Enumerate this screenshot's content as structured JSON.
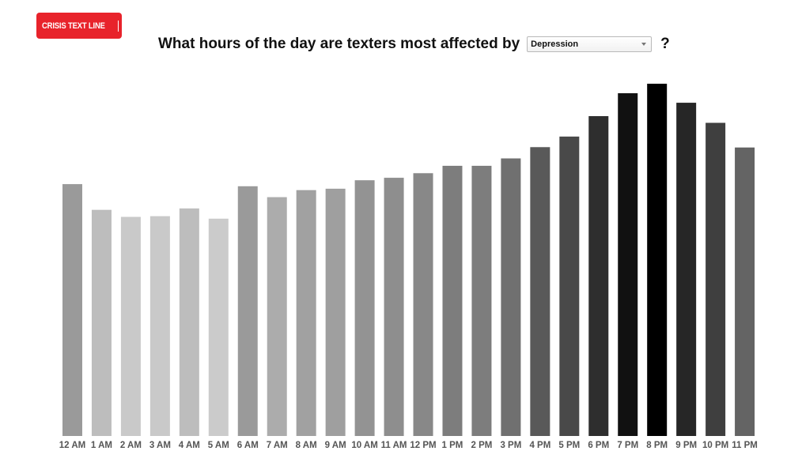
{
  "logo": {
    "text": "CRISIS TEXT LINE",
    "bg_color": "#e8232b"
  },
  "header": {
    "question": "What hours of the day are texters most affected by",
    "select_value": "Depression",
    "question_mark": "?"
  },
  "chart_data": {
    "type": "bar",
    "title": "",
    "xlabel": "",
    "ylabel": "",
    "grid": false,
    "legend": "none",
    "categories": [
      "12 AM",
      "1 AM",
      "2 AM",
      "3 AM",
      "4 AM",
      "5 AM",
      "6 AM",
      "7 AM",
      "8 AM",
      "9 AM",
      "10 AM",
      "11 AM",
      "12 PM",
      "1 PM",
      "2 PM",
      "3 PM",
      "4 PM",
      "5 PM",
      "6 PM",
      "7 PM",
      "8 PM",
      "9 PM",
      "10 PM",
      "11 PM"
    ],
    "values": [
      71.5,
      64.2,
      62.2,
      62.4,
      64.6,
      61.7,
      70.9,
      67.8,
      69.8,
      70.2,
      72.6,
      73.3,
      74.6,
      76.7,
      76.7,
      78.8,
      82.0,
      85.0,
      90.8,
      97.3,
      100,
      94.6,
      88.9,
      81.9
    ],
    "ylim": [
      0,
      100
    ],
    "bar_colors": [
      "#9a9a9a",
      "#bdbdbd",
      "#c9c9c9",
      "#c9c9c9",
      "#bdbdbd",
      "#cbcbcb",
      "#9a9a9a",
      "#acacac",
      "#a1a1a1",
      "#9f9f9f",
      "#939393",
      "#8e8e8e",
      "#888888",
      "#7d7d7d",
      "#7d7d7d",
      "#707070",
      "#595959",
      "#494949",
      "#2e2e2e",
      "#111111",
      "#000000",
      "#262626",
      "#3f3f3f",
      "#646464"
    ]
  }
}
